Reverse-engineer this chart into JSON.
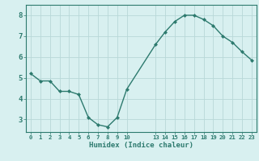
{
  "x": [
    0,
    1,
    2,
    3,
    4,
    5,
    6,
    7,
    8,
    9,
    10,
    13,
    14,
    15,
    16,
    17,
    18,
    19,
    20,
    21,
    22,
    23
  ],
  "y": [
    5.2,
    4.85,
    4.85,
    4.35,
    4.35,
    4.2,
    3.1,
    2.75,
    2.65,
    3.1,
    4.45,
    6.6,
    7.2,
    7.7,
    8.0,
    8.0,
    7.8,
    7.5,
    7.0,
    6.7,
    6.25,
    5.85
  ],
  "xticks": [
    0,
    1,
    2,
    3,
    4,
    5,
    6,
    7,
    8,
    9,
    10,
    13,
    14,
    15,
    16,
    17,
    18,
    19,
    20,
    21,
    22,
    23
  ],
  "xlabels": [
    "0",
    "1",
    "2",
    "3",
    "4",
    "5",
    "6",
    "7",
    "8",
    "9",
    "10",
    "13",
    "14",
    "15",
    "16",
    "17",
    "18",
    "19",
    "20",
    "21",
    "22",
    "23"
  ],
  "yticks": [
    3,
    4,
    5,
    6,
    7,
    8
  ],
  "ylim": [
    2.4,
    8.5
  ],
  "xlim": [
    -0.5,
    23.5
  ],
  "xlabel": "Humidex (Indice chaleur)",
  "line_color": "#2d7a6e",
  "marker": "D",
  "marker_size": 2.0,
  "bg_color": "#d8f0f0",
  "grid_color": "#b8d8d8",
  "axis_color": "#2d7a6e",
  "tick_color": "#2d7a6e",
  "label_color": "#2d7a6e",
  "linewidth": 1.0
}
